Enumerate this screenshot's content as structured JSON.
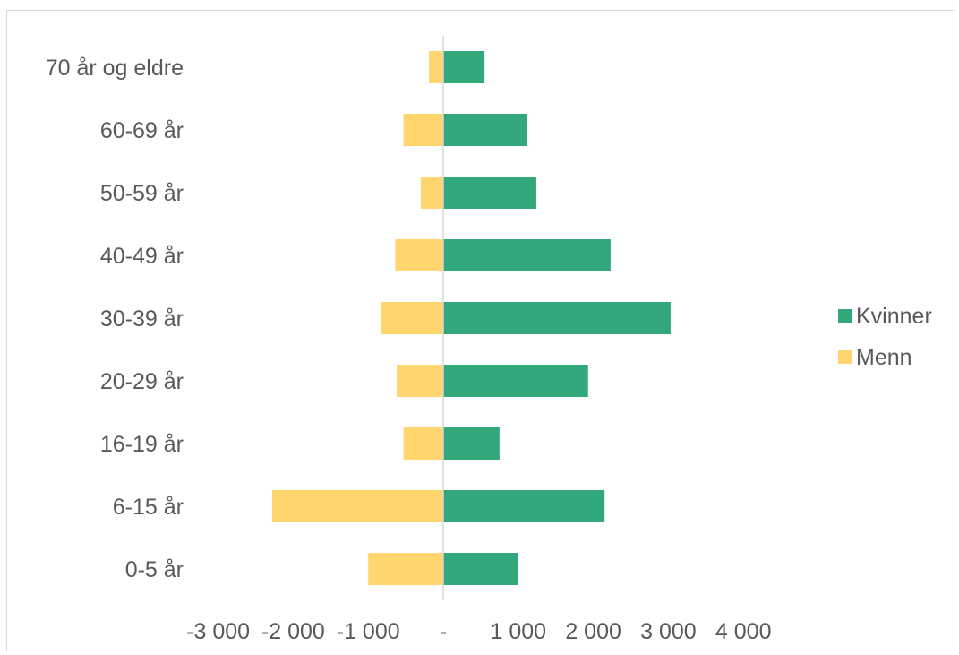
{
  "chart_data": {
    "type": "bar",
    "orientation": "horizontal",
    "stacked": true,
    "categories": [
      "0-5 år",
      "6-15 år",
      "16-19 år",
      "20-29 år",
      "30-39 år",
      "40-49 år",
      "50-59 år",
      "60-69 år",
      "70 år og eldre"
    ],
    "series": [
      {
        "name": "Kvinner",
        "color": "#31a77a",
        "values": [
          1000,
          2150,
          750,
          1930,
          3030,
          2230,
          1240,
          1110,
          550
        ]
      },
      {
        "name": "Menn",
        "color": "#ffd66e",
        "values": [
          -1000,
          -2280,
          -530,
          -620,
          -830,
          -640,
          -300,
          -530,
          -190
        ]
      }
    ],
    "xlim": [
      -3000,
      4000
    ],
    "xticks": [
      -3000,
      -2000,
      -1000,
      0,
      1000,
      2000,
      3000,
      4000
    ],
    "xtick_labels": [
      "-3 000",
      "-2 000",
      "-1 000",
      "-",
      "1 000",
      "2 000",
      "3 000",
      "4 000"
    ],
    "legend": {
      "position": "right",
      "entries": [
        "Kvinner",
        "Menn"
      ]
    },
    "grid": false,
    "title": "",
    "xlabel": "",
    "ylabel": ""
  }
}
